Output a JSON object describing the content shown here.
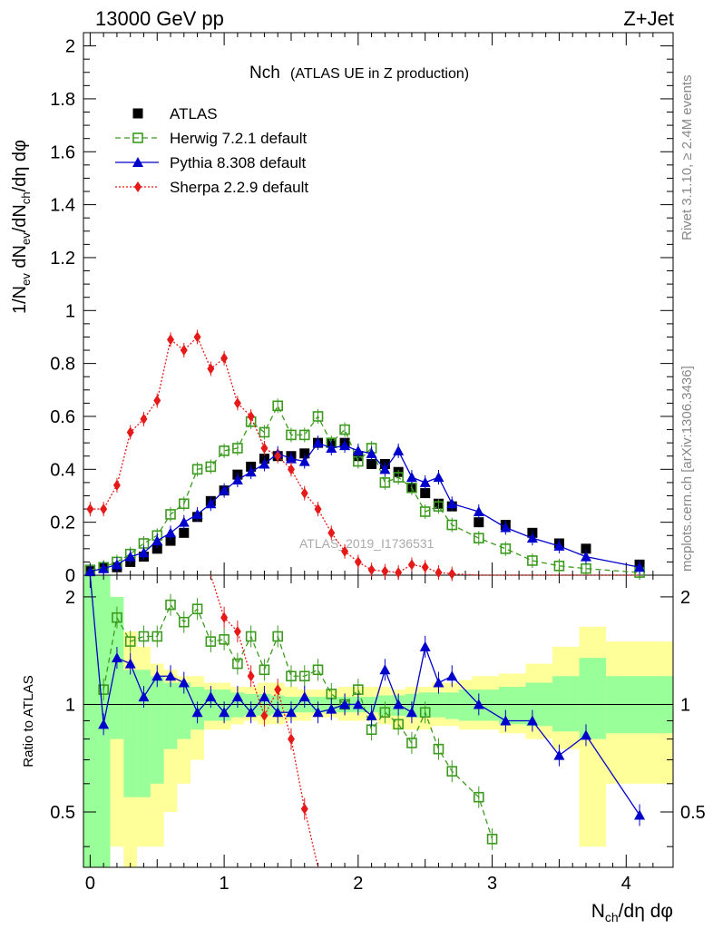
{
  "header": {
    "left": "13000 GeV pp",
    "right": "Z+Jet"
  },
  "side": {
    "right_top": "Rivet 3.1.10, ≥ 2.4M events",
    "right_bottom": "mcplots.cern.ch [arXiv:1306.3436]"
  },
  "watermark": "ATLAS_2019_I1736531",
  "chart_data": {
    "type": "scatter",
    "title_main": "Nch",
    "title_sub": "(ATLAS UE in Z production)",
    "xlabel": "N_ch/dη dφ",
    "ylabel": "1/N_ev dN_ev/dN_ch/dη dφ",
    "ratio_ylabel": "Ratio to ATLAS",
    "xlim": [
      -0.05,
      4.35
    ],
    "ylim": [
      0,
      2.05
    ],
    "ratio_ylim": [
      0.35,
      2.3
    ],
    "x_ticks": [
      "0",
      "1",
      "2",
      "3",
      "4"
    ],
    "y_ticks": [
      "0",
      "0.2",
      "0.4",
      "0.6",
      "0.8",
      "1",
      "1.2",
      "1.4",
      "1.6",
      "1.8",
      "2"
    ],
    "ratio_ticks_left": [
      "0.5",
      "1",
      "2"
    ],
    "ratio_ticks_right": [
      "0.5",
      "1",
      "2"
    ],
    "legend": [
      {
        "label": "ATLAS",
        "color": "#000000",
        "marker": "square"
      },
      {
        "label": "Herwig 7.2.1 default",
        "color": "#3c9b1e",
        "marker": "open-square",
        "dash": "6,4"
      },
      {
        "label": "Pythia 8.308 default",
        "color": "#0000cc",
        "marker": "triangle"
      },
      {
        "label": "Sherpa 2.2.9 default",
        "color": "#e61919",
        "marker": "diamond",
        "dash": "2,2"
      }
    ],
    "series": [
      {
        "name": "ATLAS",
        "x": [
          0.0,
          0.1,
          0.2,
          0.3,
          0.4,
          0.5,
          0.6,
          0.7,
          0.8,
          0.9,
          1.0,
          1.1,
          1.2,
          1.3,
          1.4,
          1.5,
          1.6,
          1.7,
          1.8,
          1.9,
          2.0,
          2.1,
          2.2,
          2.3,
          2.4,
          2.5,
          2.6,
          2.7,
          2.9,
          3.1,
          3.3,
          3.5,
          3.7,
          4.1
        ],
        "values": [
          0.015,
          0.03,
          0.03,
          0.05,
          0.07,
          0.1,
          0.13,
          0.16,
          0.22,
          0.28,
          0.32,
          0.38,
          0.41,
          0.44,
          0.45,
          0.45,
          0.46,
          0.5,
          0.5,
          0.5,
          0.45,
          0.42,
          0.42,
          0.39,
          0.33,
          0.31,
          0.27,
          0.26,
          0.2,
          0.19,
          0.16,
          0.12,
          0.1,
          0.04
        ]
      },
      {
        "name": "Herwig 7.2.1 default",
        "x": [
          0.0,
          0.1,
          0.2,
          0.3,
          0.4,
          0.5,
          0.6,
          0.7,
          0.8,
          0.9,
          1.0,
          1.1,
          1.2,
          1.3,
          1.4,
          1.5,
          1.6,
          1.7,
          1.8,
          1.9,
          2.0,
          2.1,
          2.2,
          2.3,
          2.4,
          2.5,
          2.6,
          2.7,
          2.9,
          3.1,
          3.3,
          3.5,
          3.7,
          4.1
        ],
        "values": [
          0.02,
          0.03,
          0.05,
          0.08,
          0.12,
          0.15,
          0.23,
          0.27,
          0.4,
          0.41,
          0.47,
          0.48,
          0.58,
          0.54,
          0.64,
          0.53,
          0.53,
          0.6,
          0.5,
          0.55,
          0.43,
          0.48,
          0.35,
          0.37,
          0.33,
          0.24,
          0.26,
          0.19,
          0.14,
          0.1,
          0.055,
          0.035,
          0.025,
          0.01
        ]
      },
      {
        "name": "Pythia 8.308 default",
        "x": [
          0.0,
          0.1,
          0.2,
          0.3,
          0.4,
          0.5,
          0.6,
          0.7,
          0.8,
          0.9,
          1.0,
          1.1,
          1.2,
          1.3,
          1.4,
          1.5,
          1.6,
          1.7,
          1.8,
          1.9,
          2.0,
          2.1,
          2.2,
          2.3,
          2.4,
          2.5,
          2.6,
          2.7,
          2.9,
          3.1,
          3.3,
          3.5,
          3.7,
          4.1
        ],
        "values": [
          0.015,
          0.025,
          0.04,
          0.07,
          0.085,
          0.13,
          0.16,
          0.2,
          0.23,
          0.27,
          0.32,
          0.36,
          0.39,
          0.42,
          0.46,
          0.44,
          0.43,
          0.5,
          0.48,
          0.49,
          0.47,
          0.46,
          0.4,
          0.47,
          0.37,
          0.35,
          0.37,
          0.27,
          0.24,
          0.18,
          0.14,
          0.11,
          0.07,
          0.03
        ]
      },
      {
        "name": "Sherpa 2.2.9 default",
        "x": [
          0.0,
          0.1,
          0.2,
          0.3,
          0.4,
          0.5,
          0.6,
          0.7,
          0.8,
          0.9,
          1.0,
          1.1,
          1.2,
          1.3,
          1.4,
          1.5,
          1.6,
          1.7,
          1.8,
          1.9,
          2.0,
          2.1,
          2.2,
          2.3,
          2.4,
          2.5,
          2.6,
          2.7,
          2.9,
          3.1,
          3.3,
          3.5,
          3.7,
          4.1
        ],
        "values": [
          0.25,
          0.25,
          0.34,
          0.54,
          0.59,
          0.66,
          0.89,
          0.85,
          0.9,
          0.78,
          0.82,
          0.65,
          0.6,
          0.48,
          0.45,
          0.4,
          0.31,
          0.25,
          0.16,
          0.09,
          0.05,
          0.02,
          0.015,
          0.01,
          0.04,
          0.03,
          0.01,
          0.005,
          0.0,
          0.0,
          0.0,
          0.0,
          0.0,
          0.0
        ]
      }
    ],
    "ratio_series": [
      {
        "name": "Herwig 7.2.1 default",
        "x": [
          0.1,
          0.2,
          0.3,
          0.4,
          0.5,
          0.6,
          0.7,
          0.8,
          0.9,
          1.0,
          1.1,
          1.2,
          1.3,
          1.4,
          1.5,
          1.6,
          1.7,
          1.8,
          1.9,
          2.0,
          2.1,
          2.2,
          2.3,
          2.4,
          2.5,
          2.6,
          2.7,
          2.9,
          3.0
        ],
        "values": [
          1.1,
          1.75,
          1.5,
          1.55,
          1.55,
          1.9,
          1.7,
          1.85,
          1.5,
          1.52,
          1.3,
          1.55,
          1.25,
          1.55,
          1.2,
          1.2,
          1.25,
          1.07,
          1.0,
          1.1,
          0.85,
          0.95,
          0.88,
          0.78,
          0.95,
          0.75,
          0.65,
          0.55,
          0.42
        ]
      },
      {
        "name": "Pythia 8.308 default",
        "x": [
          0.0,
          0.1,
          0.2,
          0.3,
          0.4,
          0.5,
          0.6,
          0.7,
          0.8,
          0.9,
          1.0,
          1.1,
          1.2,
          1.3,
          1.4,
          1.5,
          1.6,
          1.7,
          1.8,
          1.9,
          2.0,
          2.1,
          2.2,
          2.3,
          2.4,
          2.5,
          2.6,
          2.7,
          2.9,
          3.1,
          3.3,
          3.5,
          3.7,
          4.1
        ],
        "values": [
          2.5,
          0.88,
          1.35,
          1.3,
          1.05,
          1.2,
          1.2,
          1.15,
          0.95,
          1.05,
          0.95,
          1.05,
          0.95,
          1.05,
          0.95,
          0.95,
          1.05,
          0.95,
          0.97,
          1.0,
          1.0,
          0.93,
          1.25,
          1.0,
          0.95,
          1.45,
          1.15,
          1.2,
          1.0,
          0.9,
          0.9,
          0.72,
          0.82,
          0.49
        ]
      },
      {
        "name": "Sherpa 2.2.9 default",
        "x": [
          0.9,
          1.0,
          1.1,
          1.2,
          1.3,
          1.4,
          1.5,
          1.6,
          1.7
        ],
        "values": [
          2.3,
          1.75,
          1.6,
          1.2,
          0.93,
          1.1,
          0.8,
          0.51,
          0.35
        ]
      }
    ]
  }
}
